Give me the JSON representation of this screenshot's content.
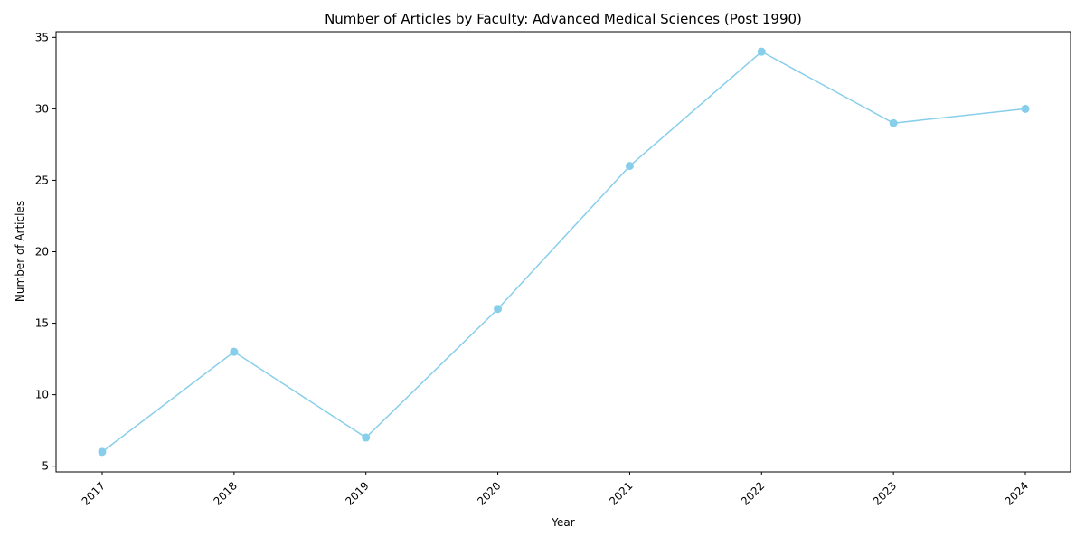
{
  "chart_data": {
    "type": "line",
    "title": "Number of Articles by Faculty: Advanced Medical Sciences (Post 1990)",
    "xlabel": "Year",
    "ylabel": "Number of Articles",
    "categories": [
      "2017",
      "2018",
      "2019",
      "2020",
      "2021",
      "2022",
      "2023",
      "2024"
    ],
    "series": [
      {
        "values": [
          6,
          13,
          7,
          16,
          26,
          34,
          29,
          30
        ],
        "color": "#87ceeb"
      }
    ],
    "ylim": [
      4.6,
      35.4
    ],
    "yticks": [
      5,
      10,
      15,
      20,
      25,
      30,
      35
    ],
    "xtick_rotation": 45,
    "grid": false,
    "legend": "none",
    "marker": "circle"
  }
}
